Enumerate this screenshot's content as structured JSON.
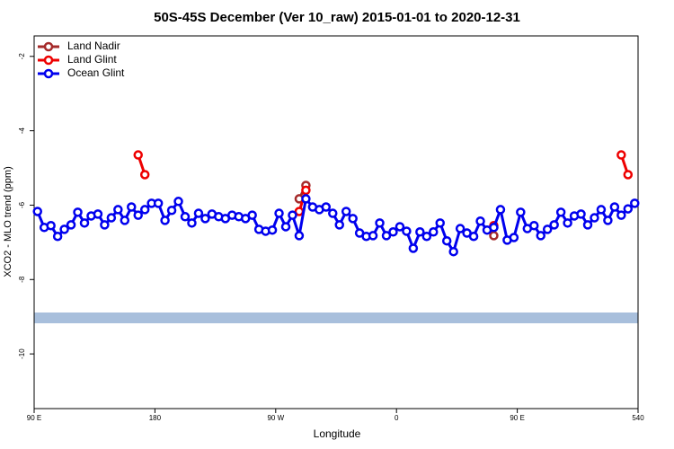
{
  "chart_data": {
    "type": "line",
    "title": "50S-45S December (Ver 10_raw)   2015-01-01 to 2020-12-31",
    "x_label": "Longitude",
    "y_label": "XCO2 - MLO trend (ppm)",
    "xlim": [
      90,
      540
    ],
    "ylim": [
      -11.47,
      -1.45
    ],
    "xticks": [
      {
        "value": 90,
        "label": "90 E"
      },
      180,
      {
        "value": 270,
        "label": "90 W"
      },
      {
        "value": 360,
        "label": "0"
      },
      {
        "value": 450,
        "label": "90 E"
      },
      540
    ],
    "yticks": [
      -2,
      -4,
      -6,
      -8,
      -10
    ],
    "legend": "top-left",
    "series": [
      {
        "name": "Land Nadir",
        "color": "#a52a2a",
        "x": [
          287.5,
          292.5,
          null,
          432.5
        ],
        "values": [
          -5.83,
          -5.47,
          null,
          -6.82
        ]
      },
      {
        "name": "Land Glint",
        "color": "#ee0000",
        "x": [
          167.5,
          172.5,
          null,
          287.5,
          292.5,
          null,
          432.5,
          null,
          527.5,
          532.5
        ],
        "values": [
          -4.65,
          -5.18,
          null,
          -6.17,
          -5.6,
          null,
          -6.55,
          null,
          -4.65,
          -5.18
        ]
      },
      {
        "name": "Ocean Glint",
        "color": "#0000ee",
        "x": [
          92.5,
          97.5,
          102.5,
          107.5,
          112.5,
          117.5,
          122.5,
          127.5,
          132.5,
          137.5,
          142.5,
          147.5,
          152.5,
          157.5,
          162.5,
          167.5,
          172.5,
          177.5,
          182.5,
          187.5,
          192.5,
          197.5,
          202.5,
          207.5,
          212.5,
          217.5,
          222.5,
          227.5,
          232.5,
          237.5,
          242.5,
          247.5,
          252.5,
          257.5,
          262.5,
          267.5,
          272.5,
          277.5,
          282.5,
          287.5,
          292.5,
          297.5,
          302.5,
          307.5,
          312.5,
          317.5,
          322.5,
          327.5,
          332.5,
          337.5,
          342.5,
          347.5,
          352.5,
          357.5,
          362.5,
          367.5,
          372.5,
          377.5,
          382.5,
          387.5,
          392.5,
          397.5,
          402.5,
          407.5,
          412.5,
          417.5,
          422.5,
          427.5,
          432.5,
          437.5,
          442.5,
          447.5,
          452.5,
          457.5,
          462.5,
          467.5,
          472.5,
          477.5,
          482.5,
          487.5,
          492.5,
          497.5,
          502.5,
          507.5,
          512.5,
          517.5,
          522.5,
          527.5,
          532.5,
          537.5
        ],
        "values": [
          -6.17,
          -6.6,
          -6.55,
          -6.84,
          -6.65,
          -6.53,
          -6.19,
          -6.48,
          -6.29,
          -6.24,
          -6.53,
          -6.34,
          -6.12,
          -6.41,
          -6.05,
          -6.27,
          -6.12,
          -5.95,
          -5.95,
          -6.41,
          -6.14,
          -5.9,
          -6.31,
          -6.48,
          -6.22,
          -6.36,
          -6.24,
          -6.31,
          -6.36,
          -6.27,
          -6.31,
          -6.36,
          -6.27,
          -6.65,
          -6.7,
          -6.67,
          -6.22,
          -6.58,
          -6.27,
          -6.82,
          -5.83,
          -6.05,
          -6.12,
          -6.05,
          -6.22,
          -6.53,
          -6.17,
          -6.36,
          -6.75,
          -6.84,
          -6.82,
          -6.48,
          -6.82,
          -6.72,
          -6.58,
          -6.7,
          -7.16,
          -6.72,
          -6.84,
          -6.72,
          -6.48,
          -6.96,
          -7.25,
          -6.63,
          -6.75,
          -6.84,
          -6.43,
          -6.67,
          -6.6,
          -6.12,
          -6.94,
          -6.87,
          -6.19,
          -6.63,
          -6.55,
          -6.82,
          -6.65,
          -6.53,
          -6.19,
          -6.48,
          -6.29,
          -6.24,
          -6.53,
          -6.34,
          -6.12,
          -6.41,
          -6.05,
          -6.27,
          -6.1,
          -5.95
        ]
      }
    ]
  }
}
